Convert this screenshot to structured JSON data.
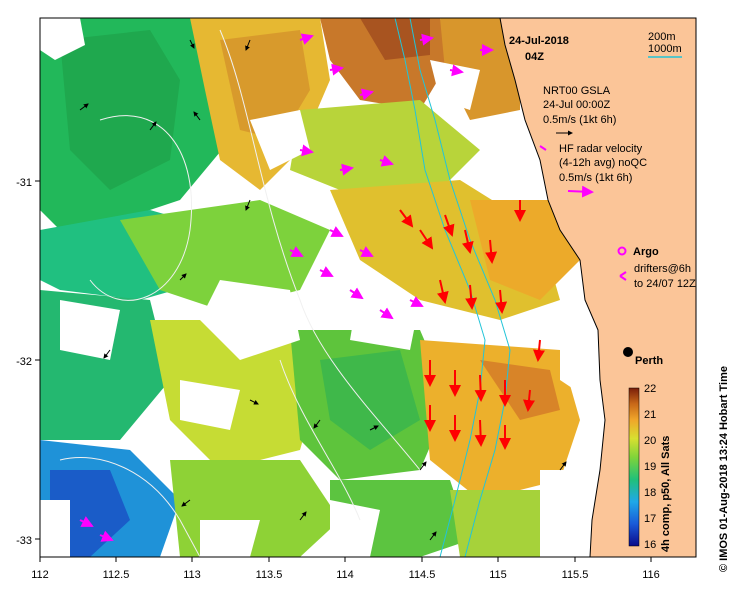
{
  "header": {
    "date": "24-Jul-2018",
    "time": "04Z"
  },
  "isobath_legend": {
    "labels": [
      "200m",
      "1000m"
    ],
    "color": "#22c4d8"
  },
  "gsla": {
    "title": "NRT00 GSLA",
    "date": "24-Jul 00:00Z",
    "scale": "0.5m/s (1kt 6h)"
  },
  "radar": {
    "line1": "HF radar velocity",
    "line2": "(4-12h avg) noQC",
    "scale": "0.5m/s (1kt 6h)"
  },
  "argo": {
    "label": "Argo"
  },
  "drifters": {
    "line1": "drifters@6h",
    "line2": "to 24/07 12Z"
  },
  "city": {
    "name": "Perth"
  },
  "axes": {
    "x_ticks": [
      "112",
      "112.5",
      "113",
      "113.5",
      "114",
      "114.5",
      "115",
      "115.5",
      "116"
    ],
    "y_ticks": [
      "-31",
      "-32",
      "-33"
    ]
  },
  "colorbar": {
    "ticks": [
      "22",
      "21",
      "20",
      "19",
      "18",
      "17",
      "16"
    ],
    "label": "4h comp, p50, All Sats"
  },
  "credit": "© IMOS 01-Aug-2018 13:24 Hobart Time",
  "colors": {
    "land": "#fbc598",
    "radar_vector": "#ff00ff",
    "hf_vector": "#ff0000",
    "coast": "#000000"
  }
}
